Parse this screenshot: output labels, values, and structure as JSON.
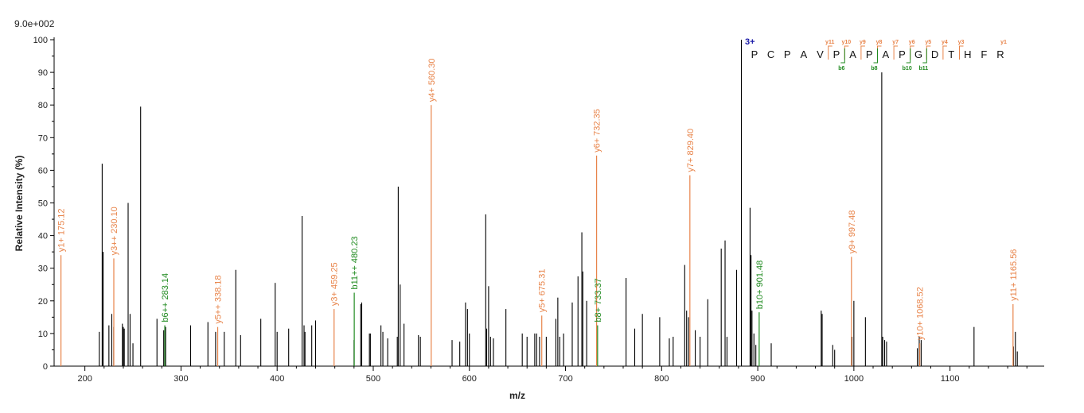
{
  "chart_data": {
    "type": "bar",
    "title": "",
    "intensity_scale": "9.0e+002",
    "xlabel": "m/z",
    "ylabel": "Relative   Intensity (%)",
    "xlim": [
      168,
      1198
    ],
    "ylim": [
      0,
      100
    ],
    "x_ticks": [
      200,
      300,
      400,
      500,
      600,
      700,
      800,
      900,
      1000,
      1100
    ],
    "y_ticks": [
      0,
      10,
      20,
      30,
      40,
      50,
      60,
      70,
      80,
      90,
      100
    ],
    "colors": {
      "unassigned": "#000000",
      "y_ion": "#e8844a",
      "b_ion": "#1f8a1f",
      "charge": "#1a1aa8"
    },
    "precursor": {
      "charge_label": "3+",
      "mz": 883.4
    },
    "peptide": {
      "sequence": [
        "P",
        "C",
        "P",
        "A",
        "V",
        "P",
        "A",
        "P",
        "A",
        "P",
        "G",
        "D",
        "T",
        "H",
        "F",
        "R"
      ],
      "y_labels": [
        "y11",
        "y10",
        "y9",
        "y8",
        "y7",
        "y6",
        "y5",
        "y4",
        "y3",
        "y1"
      ],
      "b_labels": [
        "b6",
        "b8",
        "b10",
        "b11"
      ]
    },
    "unassigned_peaks": [
      [
        215,
        10.5
      ],
      [
        218,
        62
      ],
      [
        219,
        35
      ],
      [
        225,
        12.5
      ],
      [
        228,
        16
      ],
      [
        230,
        12
      ],
      [
        239,
        13
      ],
      [
        240,
        12
      ],
      [
        241,
        11.5
      ],
      [
        245,
        50
      ],
      [
        247,
        16
      ],
      [
        250,
        7
      ],
      [
        258,
        79.5
      ],
      [
        275,
        14.5
      ],
      [
        282,
        11
      ],
      [
        284,
        12
      ],
      [
        310,
        12.5
      ],
      [
        328,
        13.5
      ],
      [
        336,
        10.5
      ],
      [
        345,
        10.5
      ],
      [
        357,
        29.5
      ],
      [
        362,
        9.5
      ],
      [
        383,
        14.5
      ],
      [
        398,
        25.5
      ],
      [
        400,
        10.5
      ],
      [
        412,
        11.5
      ],
      [
        426,
        46
      ],
      [
        428,
        12.5
      ],
      [
        429,
        10.5
      ],
      [
        436,
        12.5
      ],
      [
        440,
        14
      ],
      [
        480,
        8
      ],
      [
        487,
        19
      ],
      [
        488,
        19.5
      ],
      [
        496,
        10
      ],
      [
        497,
        10
      ],
      [
        508,
        12.5
      ],
      [
        510,
        10.5
      ],
      [
        515,
        8.5
      ],
      [
        525,
        9
      ],
      [
        526,
        55
      ],
      [
        528,
        25
      ],
      [
        532,
        13
      ],
      [
        547,
        9.5
      ],
      [
        549,
        9
      ],
      [
        582,
        8
      ],
      [
        590,
        7.5
      ],
      [
        596,
        19.5
      ],
      [
        598,
        17.5
      ],
      [
        600,
        10
      ],
      [
        617,
        46.5
      ],
      [
        618,
        11.5
      ],
      [
        620,
        24.5
      ],
      [
        622,
        9
      ],
      [
        625,
        8.5
      ],
      [
        638,
        17.5
      ],
      [
        655,
        10
      ],
      [
        660,
        9
      ],
      [
        668,
        10
      ],
      [
        670,
        10
      ],
      [
        673,
        9
      ],
      [
        680,
        9
      ],
      [
        690,
        14.5
      ],
      [
        692,
        21
      ],
      [
        694,
        9
      ],
      [
        698,
        10
      ],
      [
        707,
        19.5
      ],
      [
        713,
        27.5
      ],
      [
        717,
        41
      ],
      [
        718,
        29
      ],
      [
        722,
        20
      ],
      [
        763,
        27
      ],
      [
        772,
        11.5
      ],
      [
        780,
        16
      ],
      [
        798,
        15
      ],
      [
        808,
        8.5
      ],
      [
        812,
        9
      ],
      [
        824,
        31
      ],
      [
        826,
        17
      ],
      [
        828,
        15
      ],
      [
        835,
        11
      ],
      [
        840,
        9
      ],
      [
        848,
        20.5
      ],
      [
        862,
        36
      ],
      [
        866,
        38.5
      ],
      [
        868,
        9
      ],
      [
        878,
        29.5
      ],
      [
        883,
        100
      ],
      [
        892,
        48.5
      ],
      [
        893,
        34
      ],
      [
        894,
        17
      ],
      [
        896,
        10
      ],
      [
        898,
        6.5
      ],
      [
        914,
        7
      ],
      [
        966,
        17
      ],
      [
        967,
        16
      ],
      [
        978,
        6.5
      ],
      [
        980,
        5
      ],
      [
        998,
        9
      ],
      [
        1000,
        20
      ],
      [
        1012,
        15
      ],
      [
        1029,
        90
      ],
      [
        1030,
        9
      ],
      [
        1032,
        8
      ],
      [
        1034,
        7.5
      ],
      [
        1066,
        5.5
      ],
      [
        1068,
        9
      ],
      [
        1070,
        8
      ],
      [
        1125,
        12
      ],
      [
        1166,
        6
      ],
      [
        1168,
        10.5
      ],
      [
        1170,
        4.5
      ]
    ],
    "annotated_peaks": [
      {
        "label": "y1+ 175.12",
        "ion": "y",
        "x": 175.12,
        "y": 34
      },
      {
        "label": "y3++ 230.10",
        "ion": "y",
        "x": 230.1,
        "y": 33
      },
      {
        "label": "b6++ 283.14",
        "ion": "b",
        "x": 283.14,
        "y": 12.5
      },
      {
        "label": "y5++ 338.18",
        "ion": "y",
        "x": 338.18,
        "y": 12
      },
      {
        "label": "y3+ 459.25",
        "ion": "y",
        "x": 459.25,
        "y": 17.5
      },
      {
        "label": "b11++ 480.23",
        "ion": "b",
        "x": 480.23,
        "y": 22.5
      },
      {
        "label": "y4+ 560.30",
        "ion": "y",
        "x": 560.3,
        "y": 80
      },
      {
        "label": "y5+ 675.31",
        "ion": "y",
        "x": 675.31,
        "y": 15.5
      },
      {
        "label": "y6+ 732.35",
        "ion": "y",
        "x": 732.35,
        "y": 64.5
      },
      {
        "label": "b8+ 733.37",
        "ion": "b",
        "x": 733.37,
        "y": 12.5
      },
      {
        "label": "y7+ 829.40",
        "ion": "y",
        "x": 829.4,
        "y": 58.5
      },
      {
        "label": "b10+ 901.48",
        "ion": "b",
        "x": 901.48,
        "y": 16.5
      },
      {
        "label": "y9+ 997.48",
        "ion": "y",
        "x": 997.48,
        "y": 33.5
      },
      {
        "label": "y10+ 1068.52",
        "ion": "y",
        "x": 1068.52,
        "y": 7
      },
      {
        "label": "y11+ 1165.56",
        "ion": "y",
        "x": 1165.56,
        "y": 19
      }
    ]
  }
}
